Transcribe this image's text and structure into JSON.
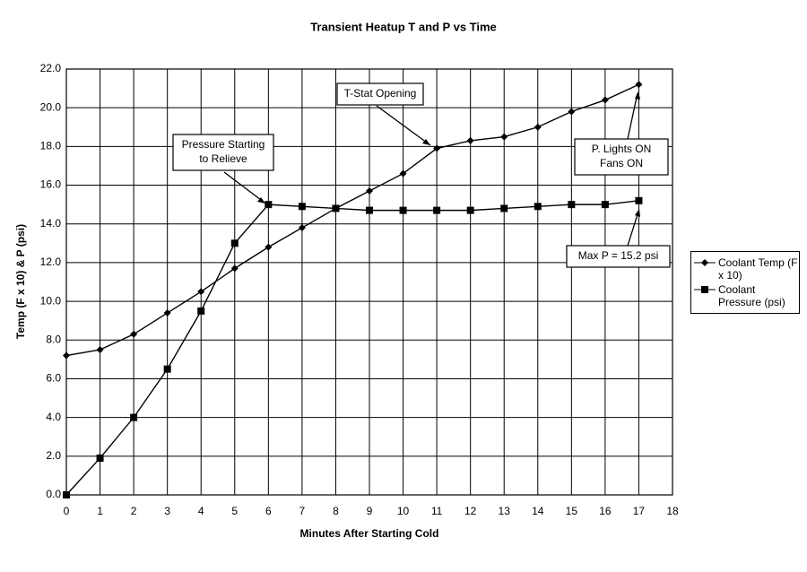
{
  "chart_data": {
    "type": "line",
    "title": "Transient Heatup T and P vs Time",
    "x_label": "Minutes After Starting Cold",
    "y_label": "Temp (F x 10) & P (psi)",
    "x": [
      0,
      1,
      2,
      3,
      4,
      5,
      6,
      7,
      8,
      9,
      10,
      11,
      12,
      13,
      14,
      15,
      16,
      17
    ],
    "series": [
      {
        "name": "Coolant Temp (F x 10)",
        "color": "#000000",
        "marker": "diamond",
        "values": [
          7.2,
          7.5,
          8.3,
          9.4,
          10.5,
          11.7,
          12.8,
          13.8,
          14.8,
          15.7,
          16.6,
          17.9,
          18.3,
          18.5,
          19.0,
          19.8,
          20.4,
          21.2
        ]
      },
      {
        "name": "Coolant Pressure (psi)",
        "color": "#000000",
        "marker": "square",
        "values": [
          0,
          1.9,
          4.0,
          6.5,
          9.5,
          13.0,
          15.0,
          14.9,
          14.8,
          14.7,
          14.7,
          14.7,
          14.7,
          14.8,
          14.9,
          15.0,
          15.0,
          15.2
        ]
      }
    ],
    "xlim": [
      0,
      18
    ],
    "xticks": [
      0,
      1,
      2,
      3,
      4,
      5,
      6,
      7,
      8,
      9,
      10,
      11,
      12,
      13,
      14,
      15,
      16,
      17,
      18
    ],
    "ylim": [
      0,
      22
    ],
    "yticks": [
      {
        "value": 0,
        "label": "0.0"
      },
      {
        "value": 2,
        "label": "2.0"
      },
      {
        "value": 4,
        "label": "4.0"
      },
      {
        "value": 6,
        "label": "6.0"
      },
      {
        "value": 8,
        "label": "8.0"
      },
      {
        "value": 10,
        "label": "10.0"
      },
      {
        "value": 12,
        "label": "12.0"
      },
      {
        "value": 14,
        "label": "14.0"
      },
      {
        "value": 16,
        "label": "16.0"
      },
      {
        "value": 18,
        "label": "18.0"
      },
      {
        "value": 20,
        "label": "20.0"
      },
      {
        "value": 22,
        "label": "22.0"
      }
    ],
    "grid": true,
    "legend": "right",
    "annotations": [
      {
        "lines": [
          "T-Stat Opening"
        ]
      },
      {
        "lines": [
          "Pressure Starting",
          "to Relieve"
        ]
      },
      {
        "lines": [
          "P. Lights ON",
          "Fans ON"
        ]
      },
      {
        "lines": [
          "Max P = 15.2 psi"
        ]
      }
    ]
  }
}
